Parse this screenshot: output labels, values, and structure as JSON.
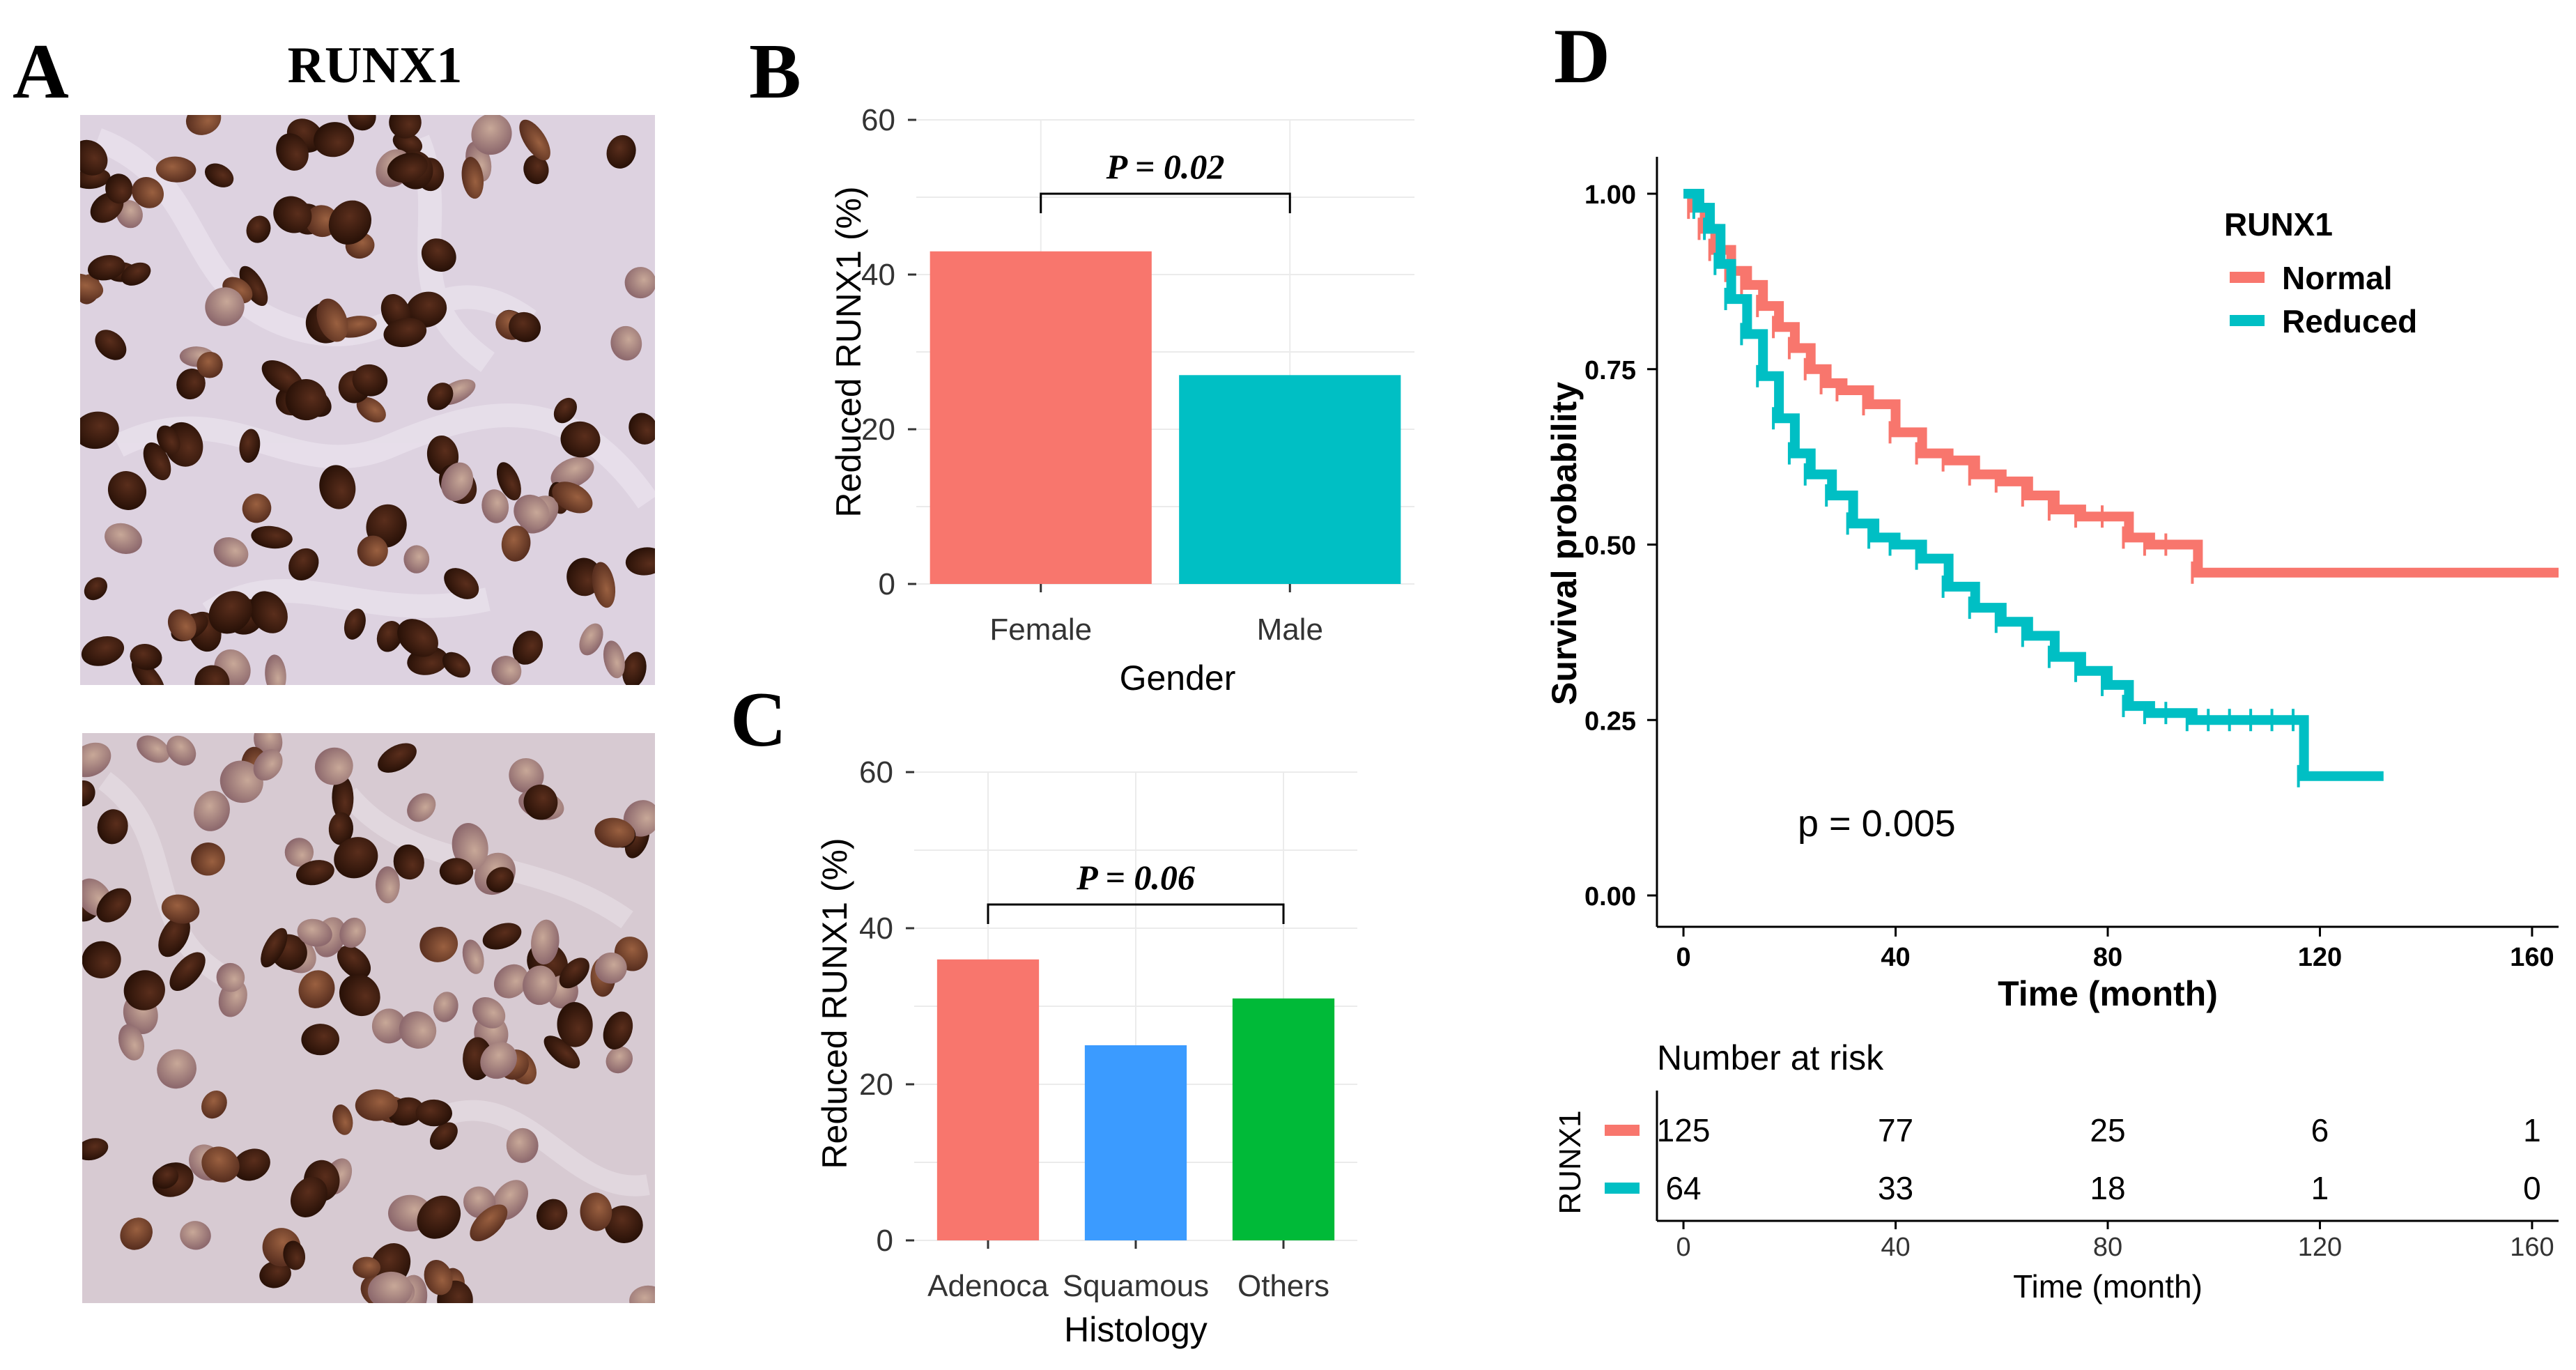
{
  "panels": {
    "a": {
      "letter": "A",
      "title": "RUNX1"
    },
    "b": {
      "letter": "B"
    },
    "c": {
      "letter": "C"
    },
    "d": {
      "letter": "D"
    }
  },
  "colors": {
    "red": "#f8766d",
    "teal": "#00bfc4",
    "blue": "#3b9bff",
    "green": "#00ba38"
  },
  "chart_data": [
    {
      "id": "B",
      "type": "bar",
      "categories": [
        "Female",
        "Male"
      ],
      "values": [
        43,
        27
      ],
      "colors": [
        "#f8766d",
        "#00bfc4"
      ],
      "xlabel": "Gender",
      "ylabel": "Reduced RUNX1 (%)",
      "ylim": [
        0,
        60
      ],
      "yticks": [
        "0",
        "20",
        "40",
        "60"
      ],
      "annotation": {
        "label": "P = 0.02",
        "from": "Female",
        "to": "Male"
      }
    },
    {
      "id": "C",
      "type": "bar",
      "categories": [
        "Adenoca",
        "Squamous",
        "Others"
      ],
      "values": [
        36,
        25,
        31
      ],
      "colors": [
        "#f8766d",
        "#3b9bff",
        "#00ba38"
      ],
      "xlabel": "Histology",
      "ylabel": "Reduced RUNX1 (%)",
      "ylim": [
        0,
        60
      ],
      "yticks": [
        "0",
        "20",
        "40",
        "60"
      ],
      "annotation": {
        "label": "P = 0.06",
        "from": "Adenoca",
        "to": "Others"
      }
    },
    {
      "id": "D",
      "type": "line",
      "subtype": "kaplan-meier",
      "xlabel": "Time (month)",
      "ylabel": "Survival probability",
      "xlim": [
        -5,
        165
      ],
      "ylim": [
        0,
        1
      ],
      "xticks": [
        "0",
        "40",
        "80",
        "120",
        "160"
      ],
      "yticks": [
        "0.00",
        "0.25",
        "0.50",
        "0.75",
        "1.00"
      ],
      "legend_title": "RUNX1",
      "pvalue_label": "p = 0.005",
      "series": [
        {
          "name": "Normal",
          "color": "#f8766d",
          "x": [
            0,
            2,
            4,
            6,
            9,
            12,
            15,
            18,
            21,
            24,
            27,
            30,
            35,
            40,
            45,
            50,
            55,
            60,
            65,
            70,
            75,
            80,
            84,
            88,
            92,
            97,
            165
          ],
          "y": [
            1.0,
            0.98,
            0.95,
            0.92,
            0.89,
            0.87,
            0.84,
            0.81,
            0.78,
            0.75,
            0.73,
            0.72,
            0.7,
            0.66,
            0.63,
            0.62,
            0.6,
            0.59,
            0.57,
            0.55,
            0.54,
            0.54,
            0.51,
            0.5,
            0.5,
            0.46,
            0.46
          ]
        },
        {
          "name": "Reduced",
          "color": "#00bfc4",
          "x": [
            0,
            3,
            5,
            7,
            9,
            12,
            15,
            18,
            21,
            24,
            28,
            32,
            36,
            40,
            45,
            50,
            55,
            60,
            65,
            70,
            75,
            80,
            84,
            88,
            92,
            96,
            100,
            104,
            108,
            112,
            116,
            117,
            132
          ],
          "y": [
            1.0,
            0.98,
            0.95,
            0.9,
            0.85,
            0.8,
            0.74,
            0.68,
            0.63,
            0.6,
            0.57,
            0.53,
            0.51,
            0.5,
            0.48,
            0.44,
            0.41,
            0.39,
            0.37,
            0.34,
            0.32,
            0.3,
            0.27,
            0.26,
            0.26,
            0.25,
            0.25,
            0.25,
            0.25,
            0.25,
            0.25,
            0.17,
            0.17
          ]
        }
      ],
      "risk_table": {
        "title": "Number at risk",
        "strata_label": "RUNX1",
        "times": [
          0,
          40,
          80,
          120,
          160
        ],
        "xlabel": "Time (month)",
        "xticks": [
          "0",
          "40",
          "80",
          "120",
          "160"
        ],
        "rows": [
          {
            "name": "Normal",
            "color": "#f8766d",
            "values": [
              "125",
              "77",
              "25",
              "6",
              "1"
            ]
          },
          {
            "name": "Reduced",
            "color": "#00bfc4",
            "values": [
              "64",
              "33",
              "18",
              "1",
              "0"
            ]
          }
        ]
      }
    }
  ]
}
